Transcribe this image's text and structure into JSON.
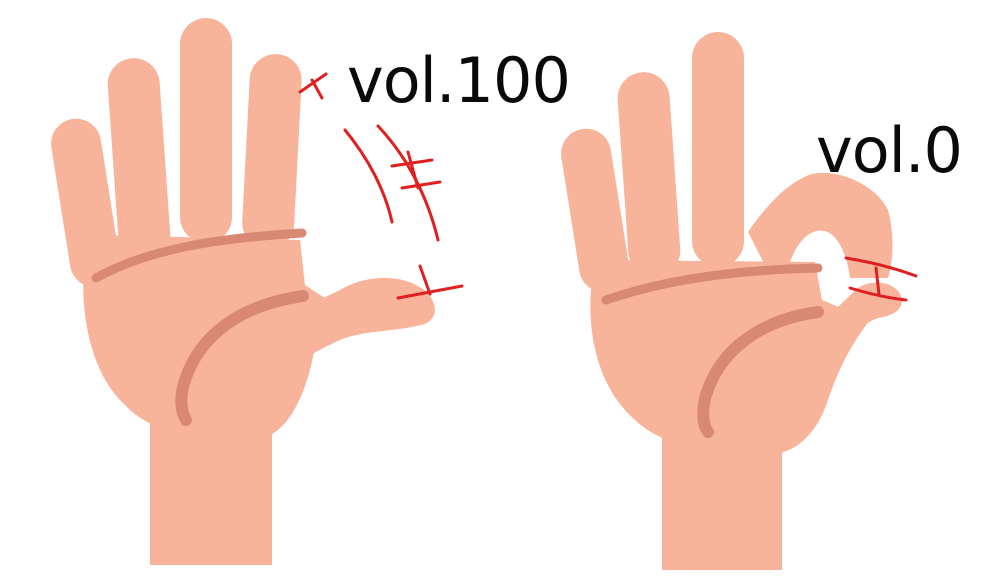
{
  "labels": {
    "open_hand": "vol.100",
    "pinch_hand": "vol.0"
  },
  "colors": {
    "background": "#ffffff",
    "skin": "#f7b49b",
    "skin_shadow": "#d98873",
    "annotation_red": "#e02020",
    "text": "#0a0a0a"
  },
  "icons": {
    "left_hand": "open-palm-hand-icon",
    "right_hand": "pinch-gesture-hand-icon"
  }
}
